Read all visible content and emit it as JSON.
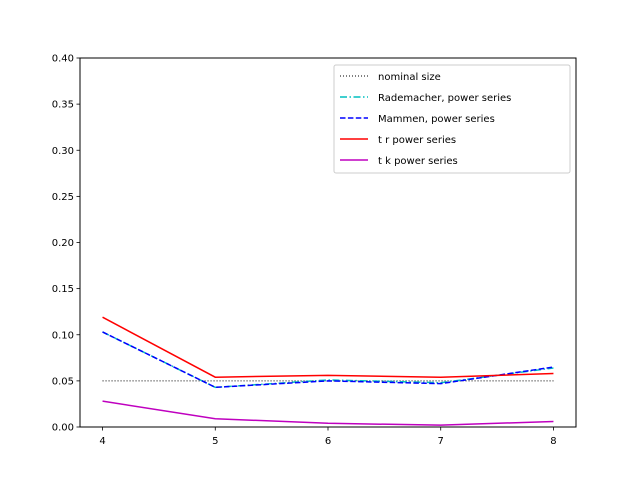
{
  "chart_data": {
    "type": "line",
    "title": "",
    "xlabel": "",
    "ylabel": "",
    "x": [
      4,
      5,
      6,
      7,
      8
    ],
    "xlim": [
      3.8,
      8.2
    ],
    "ylim": [
      0.0,
      0.4
    ],
    "xticks": [
      "4",
      "5",
      "6",
      "7",
      "8"
    ],
    "yticks": [
      "0.00",
      "0.05",
      "0.10",
      "0.15",
      "0.20",
      "0.25",
      "0.30",
      "0.35",
      "0.40"
    ],
    "grid": false,
    "legend_position": "top-right",
    "series": [
      {
        "name": "nominal size",
        "values": [
          0.05,
          0.05,
          0.05,
          0.05,
          0.05
        ],
        "color": "#000000",
        "style": "dotted"
      },
      {
        "name": "Rademacher, power series",
        "values": [
          0.103,
          0.043,
          0.051,
          0.048,
          0.064
        ],
        "color": "#00bfbf",
        "style": "dashdot"
      },
      {
        "name": "Mammen, power series",
        "values": [
          0.103,
          0.043,
          0.05,
          0.047,
          0.065
        ],
        "color": "#0000ff",
        "style": "dashed"
      },
      {
        "name": "t r power series",
        "values": [
          0.119,
          0.054,
          0.056,
          0.054,
          0.058
        ],
        "color": "#ff0000",
        "style": "solid"
      },
      {
        "name": "t k power series",
        "values": [
          0.028,
          0.009,
          0.004,
          0.002,
          0.006
        ],
        "color": "#bf00bf",
        "style": "solid"
      }
    ]
  }
}
